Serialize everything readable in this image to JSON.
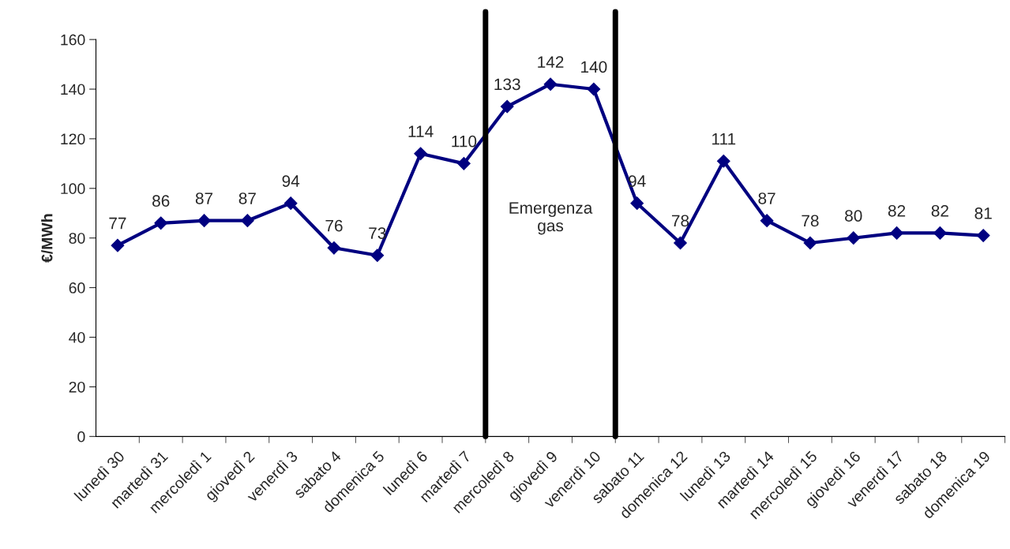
{
  "chart_data": {
    "type": "line",
    "ylabel": "€/MWh",
    "categories": [
      "lunedì 30",
      "martedì 31",
      "mercoledì 1",
      "giovedì 2",
      "venerdì 3",
      "sabato 4",
      "domenica 5",
      "lunedì 6",
      "martedì 7",
      "mercoledì 8",
      "giovedì 9",
      "venerdì 10",
      "sabato 11",
      "domenica 12",
      "lunedì 13",
      "martedì 14",
      "mercoledì 15",
      "giovedì 16",
      "venerdì 17",
      "sabato 18",
      "domenica 19"
    ],
    "series": [
      {
        "color": "#000080",
        "values": [
          77,
          86,
          87,
          87,
          94,
          76,
          73,
          114,
          110,
          133,
          142,
          140,
          94,
          78,
          111,
          87,
          78,
          80,
          82,
          82,
          81
        ]
      }
    ],
    "ylim": [
      0,
      160
    ],
    "yticks": [
      0,
      20,
      40,
      60,
      80,
      100,
      120,
      140,
      160
    ],
    "data_labels": true,
    "marker": "diamond",
    "line_style": "solid",
    "grid": false,
    "legend": false,
    "annotations": [
      "Emergenza\ngas"
    ]
  }
}
